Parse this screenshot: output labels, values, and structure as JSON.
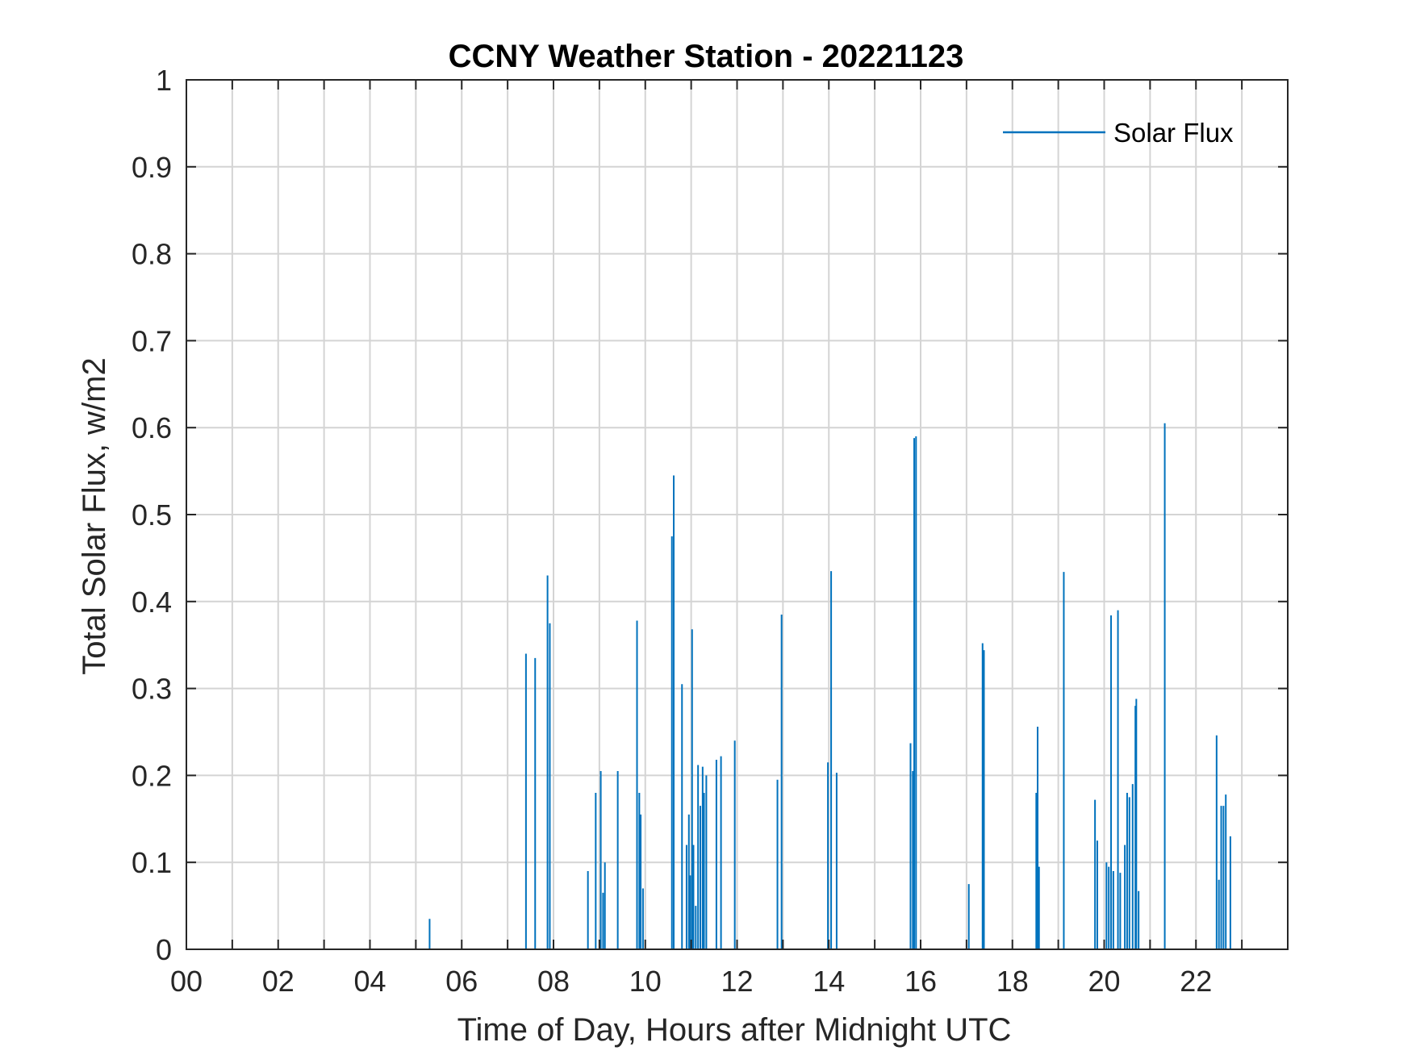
{
  "chart_data": {
    "type": "bar",
    "title": "CCNY Weather Station - 20221123",
    "xlabel": "Time of Day, Hours after Midnight UTC",
    "ylabel": "Total Solar Flux, w/m2",
    "xlim": [
      0,
      24
    ],
    "ylim": [
      0,
      1
    ],
    "x_ticks": [
      0,
      2,
      4,
      6,
      8,
      10,
      12,
      14,
      16,
      18,
      20,
      22
    ],
    "x_tick_labels": [
      "00",
      "02",
      "04",
      "06",
      "08",
      "10",
      "12",
      "14",
      "16",
      "18",
      "20",
      "22"
    ],
    "y_ticks": [
      0,
      0.1,
      0.2,
      0.3,
      0.4,
      0.5,
      0.6,
      0.7,
      0.8,
      0.9,
      1
    ],
    "y_tick_labels": [
      "0",
      "0.1",
      "0.2",
      "0.3",
      "0.4",
      "0.5",
      "0.6",
      "0.7",
      "0.8",
      "0.9",
      "1"
    ],
    "grid": true,
    "legend_position": "top-right",
    "series": [
      {
        "name": "Solar Flux",
        "color": "#0072BD",
        "x": [
          5.3,
          7.4,
          7.6,
          7.87,
          7.92,
          8.75,
          8.92,
          9.03,
          9.08,
          9.12,
          9.4,
          9.82,
          9.87,
          9.9,
          9.95,
          10.58,
          10.62,
          10.8,
          10.9,
          10.95,
          10.98,
          11.02,
          11.05,
          11.1,
          11.15,
          11.2,
          11.25,
          11.28,
          11.33,
          11.55,
          11.65,
          11.95,
          12.88,
          12.97,
          13.98,
          14.05,
          14.17,
          15.78,
          15.83,
          15.86,
          15.9,
          17.05,
          17.35,
          17.38,
          18.52,
          18.55,
          18.58,
          19.12,
          19.8,
          19.85,
          20.05,
          20.1,
          20.15,
          20.2,
          20.3,
          20.35,
          20.45,
          20.5,
          20.55,
          20.62,
          20.68,
          20.7,
          20.75,
          21.32,
          22.45,
          22.5,
          22.55,
          22.6,
          22.65,
          22.75
        ],
        "values": [
          0.035,
          0.34,
          0.335,
          0.43,
          0.375,
          0.09,
          0.18,
          0.205,
          0.065,
          0.1,
          0.205,
          0.378,
          0.18,
          0.155,
          0.07,
          0.475,
          0.545,
          0.305,
          0.12,
          0.155,
          0.085,
          0.368,
          0.12,
          0.05,
          0.212,
          0.165,
          0.21,
          0.18,
          0.2,
          0.218,
          0.222,
          0.24,
          0.195,
          0.385,
          0.215,
          0.435,
          0.203,
          0.237,
          0.205,
          0.588,
          0.59,
          0.075,
          0.352,
          0.344,
          0.18,
          0.256,
          0.095,
          0.434,
          0.172,
          0.125,
          0.1,
          0.095,
          0.384,
          0.09,
          0.39,
          0.088,
          0.12,
          0.18,
          0.175,
          0.19,
          0.28,
          0.288,
          0.067,
          0.605,
          0.246,
          0.08,
          0.165,
          0.165,
          0.178,
          0.13
        ]
      }
    ]
  }
}
